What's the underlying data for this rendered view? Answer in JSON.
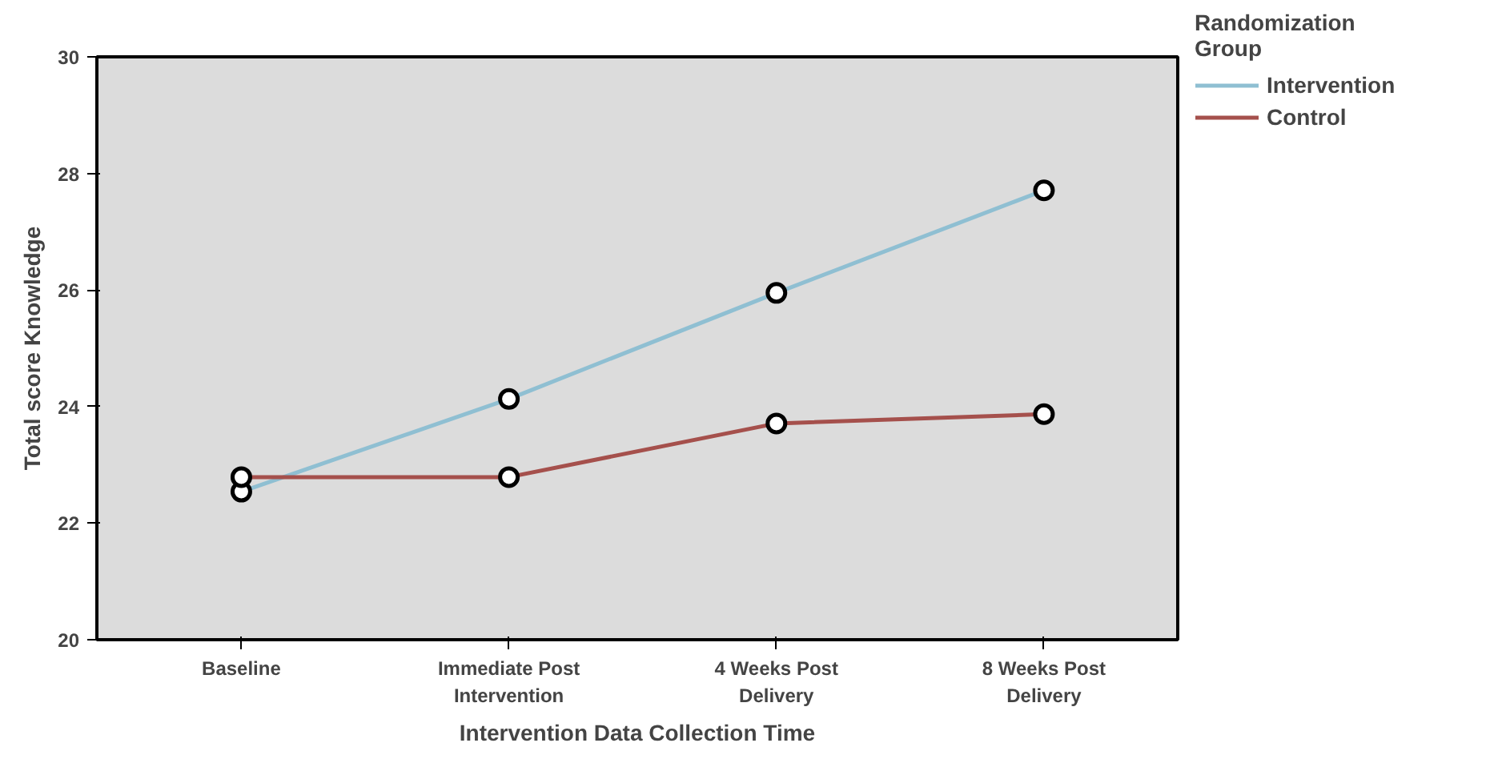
{
  "chart_data": {
    "type": "line",
    "xlabel": "Intervention Data Collection Time",
    "ylabel": "Total score Knowledge",
    "legend_title": "Randomization Group",
    "categories": [
      "Baseline",
      "Immediate Post Intervention",
      "4 Weeks Post Delivery",
      "8 Weeks Post Delivery"
    ],
    "series": [
      {
        "name": "Intervention",
        "color": "#8fbfd2",
        "values": [
          22.54,
          24.13,
          25.95,
          27.71
        ]
      },
      {
        "name": "Control",
        "color": "#a5504c",
        "values": [
          22.79,
          22.79,
          23.71,
          23.87
        ]
      }
    ],
    "ylim": [
      20,
      30
    ],
    "yticks": [
      20,
      22,
      24,
      26,
      28,
      30
    ],
    "grid": false,
    "legend": "top right",
    "marker": "circle",
    "line_style": "solid"
  }
}
